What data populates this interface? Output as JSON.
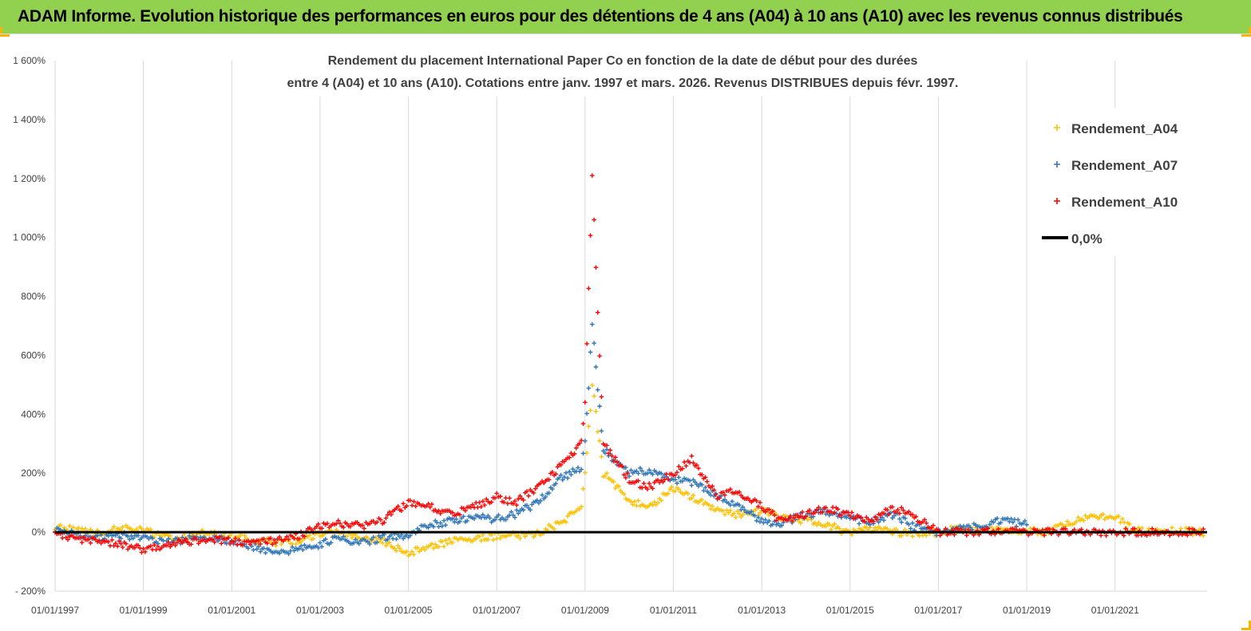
{
  "banner": {
    "text": "ADAM Informe. Evolution historique des performances en euros pour des détentions de 4 ans (A04) à 10 ans (A10) avec les revenus connus distribués"
  },
  "chart_data": {
    "type": "scatter",
    "title_lines": [
      "Rendement du placement International Paper Co en fonction de la date de début pour des durées",
      "entre 4 (A04) et 10 ans (A10).  Cotations entre janv. 1997 et mars. 2026. Revenus DISTRIBUES depuis févr. 1997."
    ],
    "xlabel": "",
    "ylabel": "",
    "x_tick_labels": [
      "01/01/1997",
      "01/01/1999",
      "01/01/2001",
      "01/01/2003",
      "01/01/2005",
      "01/01/2007",
      "01/01/2009",
      "01/01/2011",
      "01/01/2013",
      "01/01/2015",
      "01/01/2017",
      "01/01/2019",
      "01/01/2021"
    ],
    "xlim": [
      "1997-01-01",
      "2023-02-01"
    ],
    "y_tick_labels": [
      "- 200%",
      "0%",
      "200%",
      "400%",
      "600%",
      "800%",
      "1 000%",
      "1 200%",
      "1 400%",
      "1 600%"
    ],
    "ylim": [
      -200,
      1600
    ],
    "grid": "vertical",
    "legend": {
      "position": "top-right",
      "entries": [
        "Rendement_A04",
        "Rendement_A07",
        "Rendement_A10",
        "0,0%"
      ]
    },
    "colors": {
      "A04": "#ffc000",
      "A07": "#2e75b6",
      "A10": "#ff0000",
      "zero": "#000000"
    },
    "series": [
      {
        "name": "Rendement_A04",
        "points": [
          [
            "1997-01-01",
            15
          ],
          [
            "1997-06-01",
            10
          ],
          [
            "1998-01-01",
            -5
          ],
          [
            "1998-06-01",
            15
          ],
          [
            "1999-01-01",
            5
          ],
          [
            "1999-06-01",
            -15
          ],
          [
            "2000-01-01",
            -20
          ],
          [
            "2000-06-01",
            0
          ],
          [
            "2001-01-01",
            -15
          ],
          [
            "2001-06-01",
            -25
          ],
          [
            "2002-01-01",
            -35
          ],
          [
            "2002-06-01",
            -30
          ],
          [
            "2003-01-01",
            -10
          ],
          [
            "2003-06-01",
            0
          ],
          [
            "2004-01-01",
            -20
          ],
          [
            "2004-06-01",
            -30
          ],
          [
            "2005-01-01",
            -70
          ],
          [
            "2005-06-01",
            -50
          ],
          [
            "2006-01-01",
            -30
          ],
          [
            "2006-06-01",
            -25
          ],
          [
            "2007-01-01",
            -15
          ],
          [
            "2007-06-01",
            -10
          ],
          [
            "2007-12-01",
            -5
          ],
          [
            "2008-06-01",
            30
          ],
          [
            "2008-12-01",
            80
          ],
          [
            "2009-01-01",
            200
          ],
          [
            "2009-03-01",
            500
          ],
          [
            "2009-06-01",
            200
          ],
          [
            "2010-01-01",
            110
          ],
          [
            "2010-06-01",
            80
          ],
          [
            "2011-01-01",
            150
          ],
          [
            "2011-06-01",
            120
          ],
          [
            "2012-01-01",
            80
          ],
          [
            "2012-06-01",
            60
          ],
          [
            "2013-01-01",
            70
          ],
          [
            "2013-06-01",
            55
          ],
          [
            "2014-01-01",
            40
          ],
          [
            "2014-06-01",
            30
          ],
          [
            "2015-01-01",
            -5
          ],
          [
            "2015-06-01",
            10
          ],
          [
            "2016-01-01",
            0
          ],
          [
            "2016-06-01",
            -5
          ],
          [
            "2017-01-01",
            0
          ],
          [
            "2017-06-01",
            10
          ],
          [
            "2018-01-01",
            5
          ],
          [
            "2018-06-01",
            10
          ],
          [
            "2019-01-01",
            5
          ],
          [
            "2019-06-01",
            0
          ],
          [
            "2020-01-01",
            30
          ],
          [
            "2020-06-01",
            60
          ],
          [
            "2021-01-01",
            50
          ],
          [
            "2021-06-01",
            10
          ],
          [
            "2022-01-01",
            0
          ],
          [
            "2022-06-01",
            5
          ],
          [
            "2023-01-01",
            0
          ]
        ]
      },
      {
        "name": "Rendement_A07",
        "points": [
          [
            "1997-01-01",
            5
          ],
          [
            "1997-06-01",
            -5
          ],
          [
            "1998-01-01",
            -20
          ],
          [
            "1998-06-01",
            -10
          ],
          [
            "1999-01-01",
            -20
          ],
          [
            "1999-06-01",
            -35
          ],
          [
            "2000-01-01",
            -25
          ],
          [
            "2000-06-01",
            -15
          ],
          [
            "2001-01-01",
            -30
          ],
          [
            "2001-06-01",
            -45
          ],
          [
            "2002-01-01",
            -75
          ],
          [
            "2002-06-01",
            -60
          ],
          [
            "2003-01-01",
            -40
          ],
          [
            "2003-06-01",
            -20
          ],
          [
            "2004-01-01",
            -35
          ],
          [
            "2004-06-01",
            -20
          ],
          [
            "2005-01-01",
            -10
          ],
          [
            "2005-06-01",
            20
          ],
          [
            "2006-01-01",
            40
          ],
          [
            "2006-06-01",
            50
          ],
          [
            "2007-01-01",
            45
          ],
          [
            "2007-06-01",
            60
          ],
          [
            "2007-12-01",
            100
          ],
          [
            "2008-06-01",
            180
          ],
          [
            "2008-12-01",
            220
          ],
          [
            "2009-01-01",
            300
          ],
          [
            "2009-03-01",
            700
          ],
          [
            "2009-06-01",
            280
          ],
          [
            "2010-01-01",
            200
          ],
          [
            "2010-06-01",
            210
          ],
          [
            "2011-01-01",
            180
          ],
          [
            "2011-06-01",
            170
          ],
          [
            "2012-01-01",
            120
          ],
          [
            "2012-06-01",
            90
          ],
          [
            "2013-01-01",
            40
          ],
          [
            "2013-06-01",
            30
          ],
          [
            "2014-01-01",
            60
          ],
          [
            "2014-06-01",
            70
          ],
          [
            "2015-01-01",
            50
          ],
          [
            "2015-06-01",
            30
          ],
          [
            "2016-01-01",
            60
          ],
          [
            "2016-06-01",
            20
          ],
          [
            "2017-01-01",
            0
          ],
          [
            "2017-06-01",
            10
          ],
          [
            "2018-01-01",
            20
          ],
          [
            "2018-06-01",
            40
          ],
          [
            "2019-01-01",
            25
          ]
        ]
      },
      {
        "name": "Rendement_A10",
        "points": [
          [
            "1997-01-01",
            0
          ],
          [
            "1997-06-01",
            -20
          ],
          [
            "1998-01-01",
            -30
          ],
          [
            "1998-06-01",
            -40
          ],
          [
            "1999-01-01",
            -60
          ],
          [
            "1999-06-01",
            -50
          ],
          [
            "2000-01-01",
            -30
          ],
          [
            "2000-06-01",
            -25
          ],
          [
            "2001-01-01",
            -30
          ],
          [
            "2001-06-01",
            -35
          ],
          [
            "2002-01-01",
            -30
          ],
          [
            "2002-06-01",
            -20
          ],
          [
            "2003-01-01",
            20
          ],
          [
            "2003-06-01",
            30
          ],
          [
            "2004-01-01",
            20
          ],
          [
            "2004-06-01",
            40
          ],
          [
            "2005-01-01",
            100
          ],
          [
            "2005-06-01",
            90
          ],
          [
            "2006-01-01",
            60
          ],
          [
            "2006-06-01",
            80
          ],
          [
            "2007-01-01",
            120
          ],
          [
            "2007-06-01",
            100
          ],
          [
            "2007-12-01",
            150
          ],
          [
            "2008-06-01",
            220
          ],
          [
            "2008-12-01",
            300
          ],
          [
            "2009-01-01",
            450
          ],
          [
            "2009-03-01",
            1200
          ],
          [
            "2009-06-01",
            300
          ],
          [
            "2010-01-01",
            180
          ],
          [
            "2010-06-01",
            150
          ],
          [
            "2011-01-01",
            200
          ],
          [
            "2011-06-01",
            250
          ],
          [
            "2012-01-01",
            120
          ],
          [
            "2012-06-01",
            140
          ],
          [
            "2013-01-01",
            90
          ],
          [
            "2013-06-01",
            40
          ],
          [
            "2014-01-01",
            60
          ],
          [
            "2014-06-01",
            80
          ],
          [
            "2015-01-01",
            60
          ],
          [
            "2015-06-01",
            40
          ],
          [
            "2016-01-01",
            80
          ],
          [
            "2016-06-01",
            60
          ],
          [
            "2017-01-01",
            0
          ],
          [
            "2019-01-01",
            0
          ],
          [
            "2021-01-01",
            0
          ],
          [
            "2023-01-01",
            0
          ]
        ]
      }
    ]
  }
}
